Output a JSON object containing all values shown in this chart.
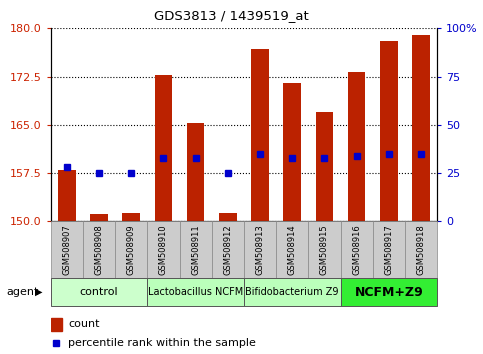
{
  "title": "GDS3813 / 1439519_at",
  "samples": [
    "GSM508907",
    "GSM508908",
    "GSM508909",
    "GSM508910",
    "GSM508911",
    "GSM508912",
    "GSM508913",
    "GSM508914",
    "GSM508915",
    "GSM508916",
    "GSM508917",
    "GSM508918"
  ],
  "count_values": [
    158.0,
    151.2,
    151.3,
    172.7,
    165.2,
    151.3,
    176.8,
    171.5,
    167.0,
    173.2,
    178.0,
    179.0
  ],
  "percentile_values": [
    28,
    25,
    25,
    33,
    33,
    25,
    35,
    33,
    33,
    34,
    35,
    35
  ],
  "ylim_left": [
    150,
    180
  ],
  "ylim_right": [
    0,
    100
  ],
  "yticks_left": [
    150,
    157.5,
    165,
    172.5,
    180
  ],
  "yticks_right": [
    0,
    25,
    50,
    75,
    100
  ],
  "bar_color": "#bb2200",
  "dot_color": "#0000cc",
  "groups": [
    {
      "label": "control",
      "start": 0,
      "end": 3,
      "color": "#ccffcc",
      "bold": false,
      "fontsize": 8
    },
    {
      "label": "Lactobacillus NCFM",
      "start": 3,
      "end": 6,
      "color": "#bbffbb",
      "bold": false,
      "fontsize": 7
    },
    {
      "label": "Bifidobacterium Z9",
      "start": 6,
      "end": 9,
      "color": "#bbffbb",
      "bold": false,
      "fontsize": 7
    },
    {
      "label": "NCFM+Z9",
      "start": 9,
      "end": 12,
      "color": "#33ee33",
      "bold": true,
      "fontsize": 9
    }
  ],
  "agent_label": "agent",
  "legend_count_label": "count",
  "legend_percentile_label": "percentile rank within the sample",
  "tick_label_color_left": "#cc2200",
  "tick_label_color_right": "#0000cc",
  "grid_color": "#000000",
  "bar_width": 0.55,
  "sample_box_color": "#cccccc",
  "sample_box_edge": "#aaaaaa"
}
